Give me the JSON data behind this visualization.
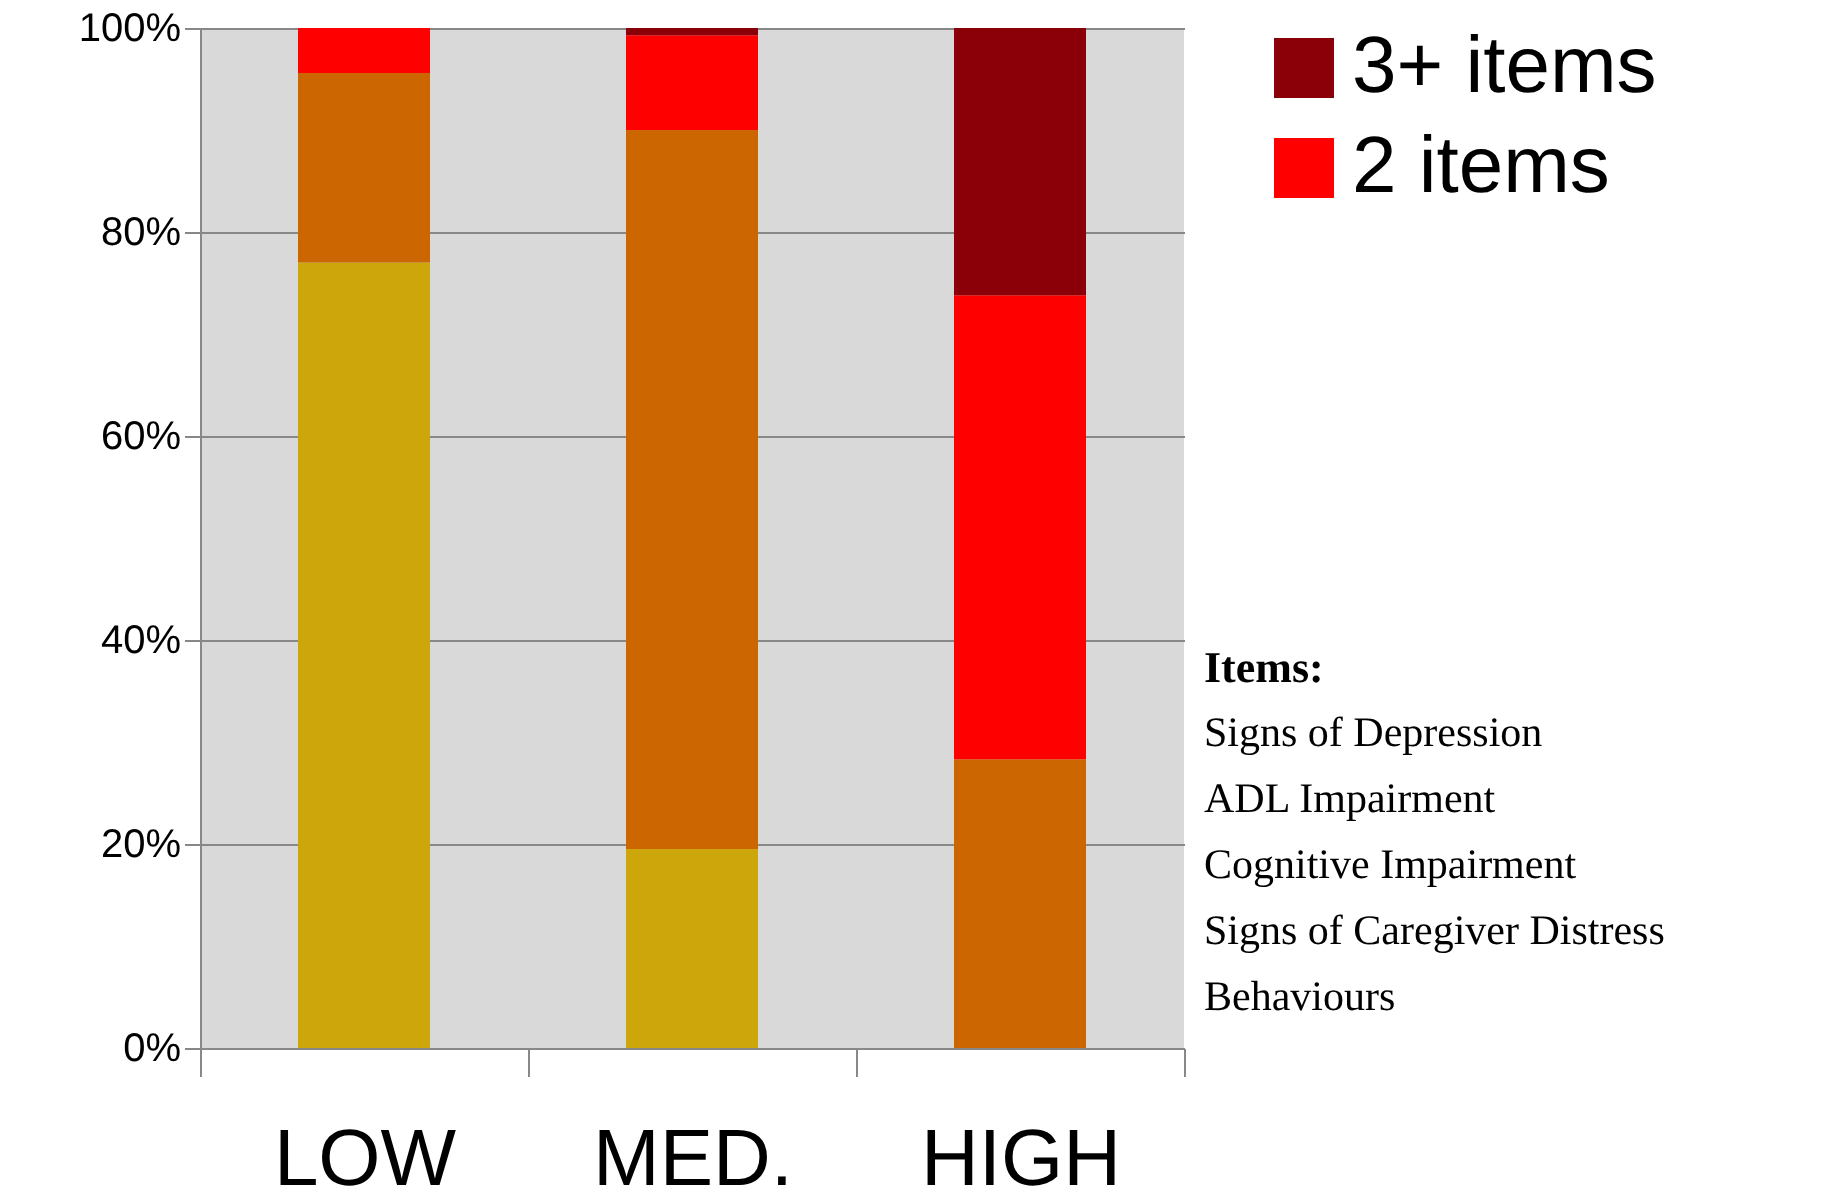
{
  "chart_data": {
    "type": "bar",
    "stacked": true,
    "categories": [
      "LOW",
      "MED.",
      "HIGH"
    ],
    "series": [
      {
        "color": "#cca60a",
        "values": [
          77,
          19.5,
          0
        ]
      },
      {
        "color": "#cc6600",
        "values": [
          18.6,
          70.5,
          28.3
        ]
      },
      {
        "name": "2 items",
        "color": "#ff0000",
        "values": [
          4.4,
          9.3,
          45.5
        ]
      },
      {
        "name": "3+ items",
        "color": "#8b0008",
        "values": [
          0,
          0.7,
          26.2
        ]
      }
    ],
    "ylim": [
      0,
      100
    ],
    "yticks": [
      {
        "value": 0,
        "label": "0%"
      },
      {
        "value": 20,
        "label": "20%"
      },
      {
        "value": 40,
        "label": "40%"
      },
      {
        "value": 60,
        "label": "60%"
      },
      {
        "value": 80,
        "label": "80%"
      },
      {
        "value": 100,
        "label": "100%"
      }
    ],
    "grid": "y",
    "legend": "top right",
    "annotations": [
      "Items:",
      "Signs of Depression",
      "ADL Impairment",
      "Cognitive Impairment",
      "Signs of Caregiver Distress",
      "Behaviours"
    ]
  }
}
